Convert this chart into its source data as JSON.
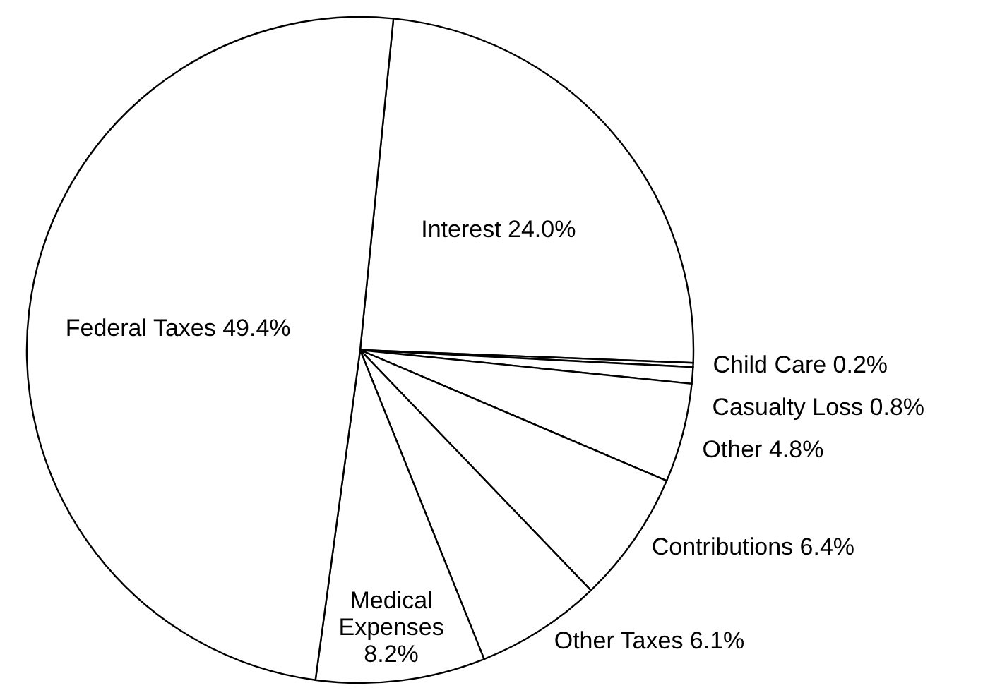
{
  "chart_data": {
    "type": "pie",
    "categories": [
      "Interest",
      "Child Care",
      "Casualty Loss",
      "Other",
      "Contributions",
      "Other Taxes",
      "Medical\nExpenses",
      "Federal Taxes"
    ],
    "values": [
      24.0,
      0.2,
      0.8,
      4.8,
      6.4,
      6.1,
      8.2,
      49.4
    ],
    "value_labels": [
      "24.0%",
      "0.2%",
      "0.8%",
      "4.8%",
      "6.4%",
      "6.1%",
      "8.2%",
      "49.4%"
    ],
    "colors": [
      "#ffffff",
      "#ffffff",
      "#ffffff",
      "#ffffff",
      "#ffffff",
      "#ffffff",
      "#ffffff",
      "#ffffff"
    ],
    "legend": false
  }
}
